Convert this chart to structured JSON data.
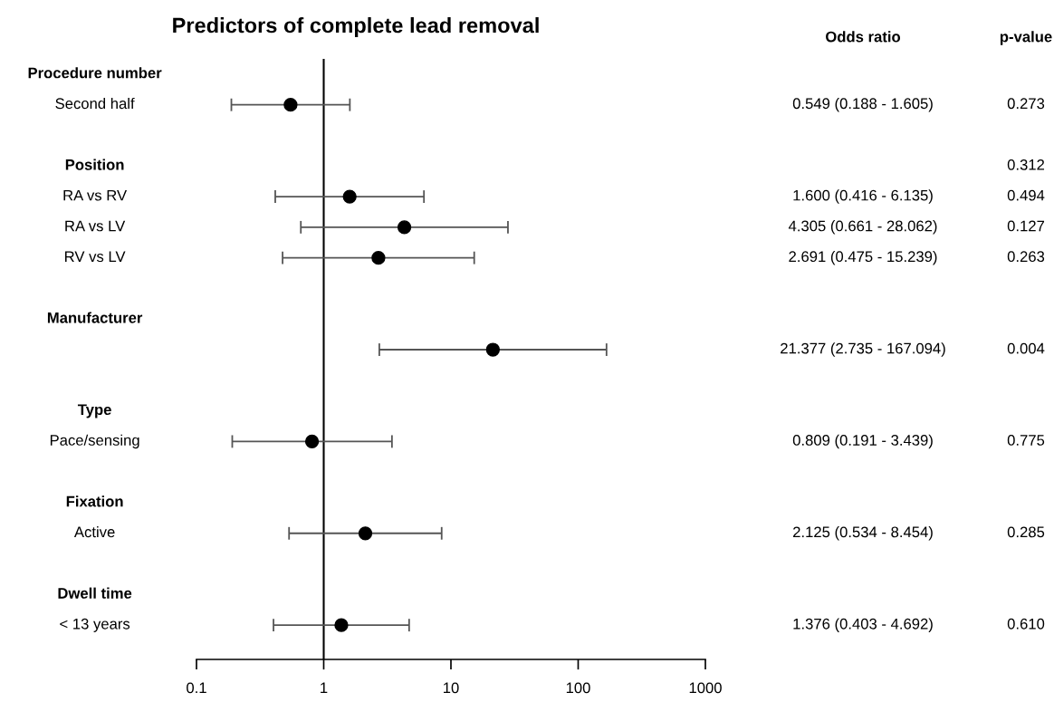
{
  "chart_data": {
    "type": "scatter",
    "orientation": "horizontal",
    "title": "Predictors of complete lead removal",
    "categories": [
      "Procedure number",
      "Second half",
      null,
      "Position",
      "RA vs RV",
      "RA vs LV",
      "RV vs LV",
      null,
      "Manufacturer",
      null,
      null,
      "Type",
      "Pace/sensing",
      null,
      "Fixation",
      "Active",
      null,
      "Dwell time",
      "< 13 years"
    ],
    "values": [
      null,
      0.549,
      null,
      null,
      1.6,
      4.305,
      2.691,
      null,
      null,
      21.377,
      null,
      null,
      0.809,
      null,
      null,
      2.125,
      null,
      null,
      1.376
    ],
    "errors": [
      null,
      [
        0.188,
        1.605
      ],
      null,
      null,
      [
        0.416,
        6.135
      ],
      [
        0.661,
        28.062
      ],
      [
        0.475,
        15.239
      ],
      null,
      null,
      [
        2.735,
        167.094
      ],
      null,
      null,
      [
        0.191,
        3.439
      ],
      null,
      null,
      [
        0.534,
        8.454
      ],
      null,
      null,
      [
        0.403,
        4.692
      ]
    ],
    "color": "#000000",
    "marker": "circle",
    "log": "x",
    "xlim": [
      0.1,
      1000
    ],
    "xticks": [
      0.1,
      1,
      10,
      100,
      1000
    ],
    "ref_lines": [
      {
        "axis": "x",
        "value": 1,
        "color": "#000000"
      }
    ],
    "grid": false,
    "legend": false,
    "annotations": [
      "Odds ratio",
      "p-value",
      "0.549 (0.188 - 1.605)",
      "0.273",
      "0.312",
      "1.600 (0.416 - 6.135)",
      "0.494",
      "4.305 (0.661 - 28.062)",
      "0.127",
      "2.691 (0.475 - 15.239)",
      "0.263",
      "21.377 (2.735 - 167.094)",
      "0.004",
      "0.809 (0.191 - 3.439)",
      "0.775",
      "2.125 (0.534 - 8.454)",
      "0.285",
      "1.376 (0.403 - 4.692)",
      "0.610"
    ]
  }
}
